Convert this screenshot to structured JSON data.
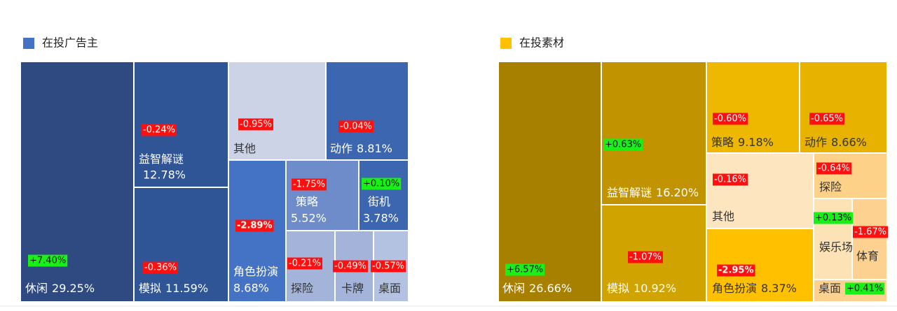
{
  "chart_data": [
    {
      "type": "treemap",
      "title": "在投广告主",
      "color": "#4472c4",
      "categories": [
        "休闲",
        "益智解谜",
        "模拟",
        "其他",
        "动作",
        "角色扮演",
        "策略",
        "街机",
        "探险",
        "卡牌",
        "桌面"
      ],
      "values": [
        29.25,
        12.78,
        11.59,
        null,
        8.81,
        8.68,
        5.52,
        3.78,
        null,
        null,
        null
      ],
      "value_labels": [
        "29.25%",
        "12.78%",
        "11.59%",
        null,
        "8.81%",
        "8.68%",
        "5.52%",
        "3.78%",
        null,
        null,
        null
      ],
      "changes": [
        7.4,
        -0.24,
        -0.36,
        -0.95,
        -0.04,
        -2.89,
        -1.75,
        0.1,
        -0.21,
        -0.49,
        -0.57
      ],
      "change_labels": [
        "+7.40%",
        "-0.24%",
        "-0.36%",
        "-0.95%",
        "-0.04%",
        "-2.89%",
        "-1.75%",
        "+0.10%",
        "-0.21%",
        "-0.49%",
        "-0.57%"
      ],
      "colors": [
        "#2e4a80",
        "#2f5597",
        "#2f5597",
        "#cdd3e6",
        "#3d66b0",
        "#4472c4",
        "#6d8cc9",
        "#3d66b0",
        "#a3b3da",
        "#a3b3da",
        "#b4c2e2"
      ]
    },
    {
      "type": "treemap",
      "title": "在投素材",
      "color": "#ffc000",
      "categories": [
        "休闲",
        "益智解谜",
        "模拟",
        "策略",
        "动作",
        "其他",
        "角色扮演",
        "探险",
        "娱乐场",
        "体育",
        "桌面"
      ],
      "values": [
        26.66,
        16.2,
        10.92,
        9.18,
        8.66,
        null,
        8.37,
        null,
        null,
        null,
        null
      ],
      "value_labels": [
        "26.66%",
        "16.20%",
        "10.92%",
        "9.18%",
        "8.66%",
        null,
        "8.37%",
        null,
        null,
        null,
        null
      ],
      "changes": [
        6.57,
        0.63,
        -1.07,
        -0.6,
        -0.65,
        -0.16,
        -2.95,
        -0.64,
        0.13,
        -1.67,
        0.41
      ],
      "change_labels": [
        "+6.57%",
        "+0.63%",
        "-1.07%",
        "-0.60%",
        "-0.65%",
        "-0.16%",
        "-2.95%",
        "-0.64%",
        "+0.13%",
        "-1.67%",
        "+0.41%"
      ],
      "colors": [
        "#a88000",
        "#c29300",
        "#d0a300",
        "#efb800",
        "#e8b200",
        "#fde6bf",
        "#ffc000",
        "#fdd188",
        "#fde2b5",
        "#fdd291",
        "#fdd291"
      ]
    }
  ]
}
